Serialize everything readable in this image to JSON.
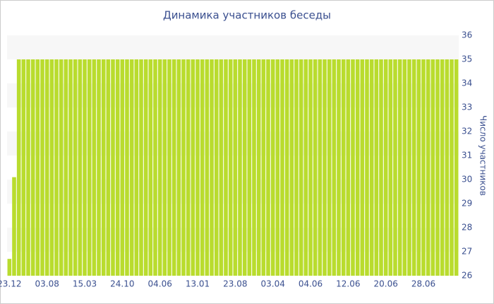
{
  "chart_data": {
    "type": "bar",
    "title": "Динамика участников беседы",
    "y_label": "Число участников",
    "categories": [
      "23.12",
      null,
      null,
      null,
      null,
      null,
      null,
      null,
      "03.08",
      null,
      null,
      null,
      null,
      null,
      null,
      null,
      "15.03",
      null,
      null,
      null,
      null,
      null,
      null,
      null,
      "24.10",
      null,
      null,
      null,
      null,
      null,
      null,
      null,
      "04.06",
      null,
      null,
      null,
      null,
      null,
      null,
      null,
      "13.01",
      null,
      null,
      null,
      null,
      null,
      null,
      null,
      "23.08",
      null,
      null,
      null,
      null,
      null,
      null,
      null,
      "03.04",
      null,
      null,
      null,
      null,
      null,
      null,
      null,
      "04.06",
      null,
      null,
      null,
      null,
      null,
      null,
      null,
      "12.06",
      null,
      null,
      null,
      null,
      null,
      null,
      null,
      "20.06",
      null,
      null,
      null,
      null,
      null,
      null,
      null,
      "28.06",
      null,
      null,
      null,
      null,
      null,
      null,
      null
    ],
    "values": [
      26.7,
      30.1,
      35,
      35,
      35,
      35,
      35,
      35,
      35,
      35,
      35,
      35,
      35,
      35,
      35,
      35,
      35,
      35,
      35,
      35,
      35,
      35,
      35,
      35,
      35,
      35,
      35,
      35,
      35,
      35,
      35,
      35,
      35,
      35,
      35,
      35,
      35,
      35,
      35,
      35,
      35,
      35,
      35,
      35,
      35,
      35,
      35,
      35,
      35,
      35,
      35,
      35,
      35,
      35,
      35,
      35,
      35,
      35,
      35,
      35,
      35,
      35,
      35,
      35,
      35,
      35,
      35,
      35,
      35,
      35,
      35,
      35,
      35,
      35,
      35,
      35,
      35,
      35,
      35,
      35,
      35,
      35,
      35,
      35,
      35,
      35,
      35,
      35,
      35,
      35,
      35,
      35,
      35,
      35,
      35,
      35
    ],
    "color": "#b9dc2e",
    "ylim": [
      26,
      36
    ],
    "yticks": [
      26,
      27,
      28,
      29,
      30,
      31,
      32,
      33,
      34,
      35,
      36
    ],
    "y_axis_side": "right",
    "grid": true
  }
}
